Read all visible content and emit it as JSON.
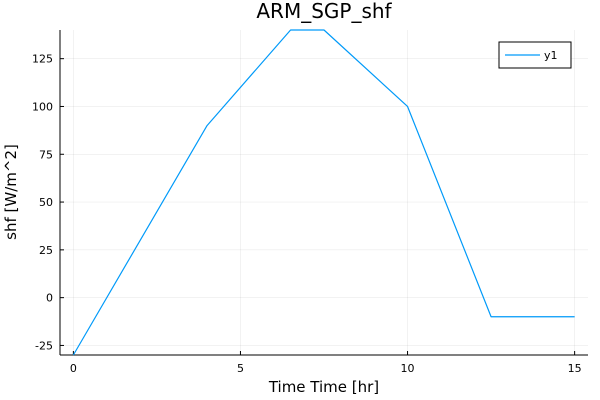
{
  "chart_data": {
    "type": "line",
    "title": "ARM_SGP_shf",
    "xlabel": "Time Time [hr]",
    "ylabel": "shf [W/m^2]",
    "xlim": [
      -0.4,
      15.4
    ],
    "ylim": [
      -30,
      140
    ],
    "xticks": [
      0,
      5,
      10,
      15
    ],
    "yticks": [
      -25,
      0,
      25,
      50,
      75,
      100,
      125
    ],
    "grid": true,
    "legend_position": "top-right",
    "series": [
      {
        "name": "y1",
        "color": "#009af9",
        "x": [
          0,
          4,
          6.5,
          7.5,
          10,
          12.5,
          15
        ],
        "y": [
          -30,
          90,
          140,
          140,
          100,
          -10,
          -10
        ]
      }
    ]
  }
}
